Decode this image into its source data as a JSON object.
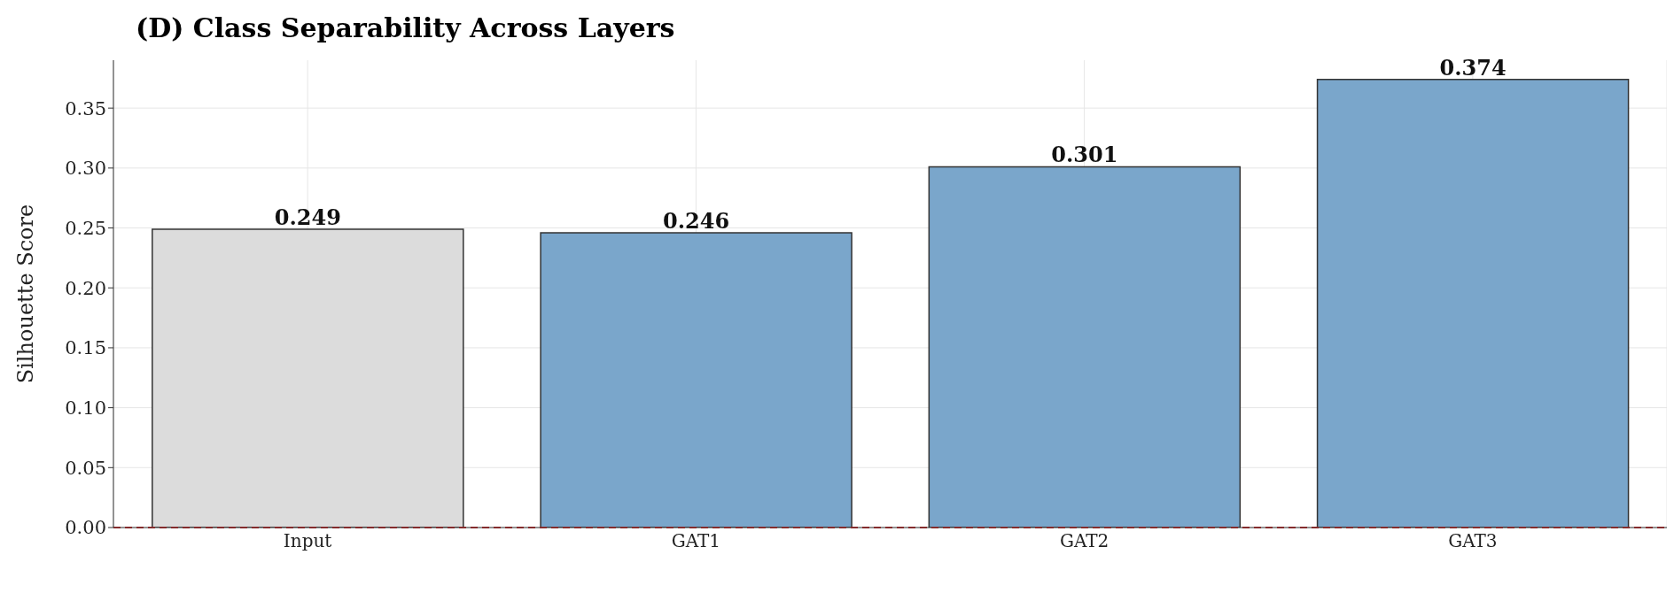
{
  "chart_data": {
    "type": "bar",
    "title": "(D) Class Separability Across Layers",
    "ylabel": "Silhouette Score",
    "categories": [
      "Input",
      "GAT1",
      "GAT2",
      "GAT3"
    ],
    "values": [
      0.249,
      0.246,
      0.301,
      0.374
    ],
    "colors": [
      "#dcdcdc",
      "#7aa6cb",
      "#7aa6cb",
      "#7aa6cb"
    ],
    "ylim": [
      0,
      0.39
    ],
    "yticks": [
      {
        "value": 0,
        "label": "0.00"
      },
      0.05,
      {
        "value": 0.1,
        "label": "0.10"
      },
      0.15,
      {
        "value": 0.2,
        "label": "0.20"
      },
      0.25,
      {
        "value": 0.3,
        "label": "0.30"
      },
      0.35
    ],
    "grid": true,
    "data_labels": true,
    "ref_lines": [
      {
        "axis": "y",
        "value": 0,
        "color": "#d62728",
        "line_style": "dashed"
      }
    ]
  }
}
